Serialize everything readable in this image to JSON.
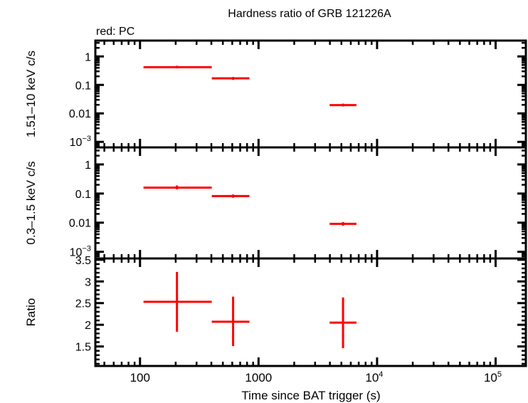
{
  "chart_data": {
    "type": "scatter",
    "title": "Hardness ratio of GRB 121226A",
    "legend_note": "red: PC",
    "xlabel": "Time since BAT trigger (s)",
    "xscale": "log",
    "xlim": [
      42,
      180000
    ],
    "xticks": [
      {
        "v": 100,
        "label": "100"
      },
      {
        "v": 1000,
        "label": "1000"
      },
      {
        "v": 10000,
        "label": "10",
        "exp": "4"
      },
      {
        "v": 100000,
        "label": "10",
        "exp": "5"
      }
    ],
    "series_color": "#ff0000",
    "panels": [
      {
        "ylabel": "1.51–10 keV c/s",
        "yscale": "log",
        "ylim": [
          0.00064,
          3.6
        ],
        "yticks": [
          {
            "v": 1,
            "label": "1"
          },
          {
            "v": 0.1,
            "label": "0.1"
          },
          {
            "v": 0.01,
            "label": "0.01"
          },
          {
            "v": 0.001,
            "label": "10",
            "exp": "−3"
          }
        ],
        "points": [
          {
            "x": 205,
            "xlo": 107,
            "xhi": 403,
            "y": 0.42,
            "ylo": 0.38,
            "yhi": 0.47
          },
          {
            "x": 610,
            "xlo": 403,
            "xhi": 838,
            "y": 0.17,
            "ylo": 0.15,
            "yhi": 0.19
          },
          {
            "x": 5160,
            "xlo": 3980,
            "xhi": 6700,
            "y": 0.0195,
            "ylo": 0.0175,
            "yhi": 0.022
          }
        ]
      },
      {
        "ylabel": "0.3–1.5 keV c/s",
        "yscale": "log",
        "ylim": [
          0.00059,
          3.85
        ],
        "yticks": [
          {
            "v": 1,
            "label": "1"
          },
          {
            "v": 0.1,
            "label": "0.1"
          },
          {
            "v": 0.01,
            "label": "0.01"
          },
          {
            "v": 0.001,
            "label": "10",
            "exp": "−3"
          }
        ],
        "points": [
          {
            "x": 205,
            "xlo": 107,
            "xhi": 403,
            "y": 0.16,
            "ylo": 0.14,
            "yhi": 0.19
          },
          {
            "x": 610,
            "xlo": 403,
            "xhi": 838,
            "y": 0.082,
            "ylo": 0.072,
            "yhi": 0.093
          },
          {
            "x": 5160,
            "xlo": 3980,
            "xhi": 6700,
            "y": 0.0091,
            "ylo": 0.0079,
            "yhi": 0.0105
          }
        ]
      },
      {
        "ylabel": "Ratio",
        "yscale": "linear",
        "ylim": [
          1.05,
          3.53
        ],
        "yticks": [
          {
            "v": 3.5,
            "label": "3.5"
          },
          {
            "v": 3,
            "label": "3"
          },
          {
            "v": 2.5,
            "label": "2.5"
          },
          {
            "v": 2,
            "label": "2"
          },
          {
            "v": 1.5,
            "label": "1.5"
          }
        ],
        "yminor": 0.1,
        "points": [
          {
            "x": 205,
            "xlo": 107,
            "xhi": 403,
            "y": 2.53,
            "ylo": 1.84,
            "yhi": 3.22
          },
          {
            "x": 610,
            "xlo": 403,
            "xhi": 838,
            "y": 2.07,
            "ylo": 1.51,
            "yhi": 2.65
          },
          {
            "x": 5160,
            "xlo": 3980,
            "xhi": 6700,
            "y": 2.05,
            "ylo": 1.46,
            "yhi": 2.63
          }
        ]
      }
    ]
  }
}
